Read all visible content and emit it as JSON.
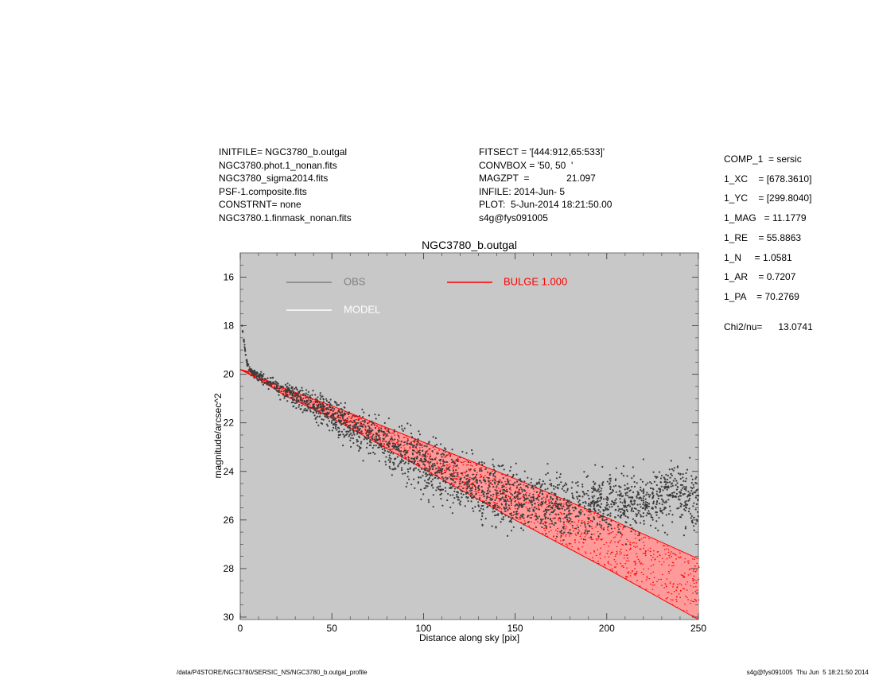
{
  "header": {
    "left": [
      "INITFILE= NGC3780_b.outgal",
      "NGC3780.phot.1_nonan.fits",
      "NGC3780_sigma2014.fits",
      "PSF-1.composite.fits",
      "CONSTRNT= none",
      "NGC3780.1.finmask_nonan.fits"
    ],
    "middle": [
      "FITSECT = '[444:912,65:533]'",
      "CONVBOX = '50, 50  '",
      "MAGZPT  =              21.097",
      "INFILE: 2014-Jun- 5",
      "PLOT:  5-Jun-2014 18:21:50.00",
      "s4g@fys091005"
    ]
  },
  "components": [
    "COMP_1  = sersic",
    "1_XC    = [678.3610]",
    "1_YC    = [299.8040]",
    "1_MAG   = 11.1779",
    "1_RE    = 55.8863",
    "1_N     = 1.0581",
    "1_AR    = 0.7207",
    "1_PA    = 70.2769",
    "Chi2/nu=      13.0741"
  ],
  "footer": {
    "left": "/data/P4STORE/NGC3780/SERSIC_NS/NGC3780_b.outgal_profile",
    "right": "s4g@fys091005  Thu Jun  5 18:21:50 2014"
  },
  "chart_data": {
    "type": "scatter",
    "title": "NGC3780_b.outgal",
    "xlabel": "Distance along sky [pix]",
    "ylabel": "magnitude/arcsec^2",
    "xlim": [
      0,
      250
    ],
    "ylim": [
      30.1,
      15.0
    ],
    "y_inverted": true,
    "xticks": [
      0,
      50,
      100,
      150,
      200,
      250
    ],
    "yticks": [
      16,
      18,
      20,
      22,
      24,
      26,
      28,
      30
    ],
    "background_color": "#c8c8c8",
    "legend": [
      {
        "name": "OBS",
        "color": "#808080"
      },
      {
        "name": "MODEL",
        "color": "#ffffff"
      },
      {
        "name": "BULGE  1.000",
        "color": "#ff0000"
      }
    ],
    "series": [
      {
        "name": "OBS",
        "color": "#3c3c3c",
        "style": "points",
        "x": [
          1,
          2,
          3,
          4,
          5,
          6,
          8,
          10,
          15,
          20,
          25,
          30,
          35,
          40,
          45,
          50,
          55,
          60,
          65,
          70,
          75,
          80,
          85,
          90,
          95,
          100,
          105,
          110,
          115,
          120,
          125,
          130,
          135,
          140,
          145,
          150,
          155,
          160,
          165,
          170,
          175,
          180,
          185,
          190,
          195,
          200,
          205,
          210,
          215,
          220,
          225,
          230,
          235,
          240,
          245,
          250
        ],
        "y": [
          18.0,
          18.6,
          19.2,
          19.6,
          19.8,
          19.9,
          20.0,
          20.1,
          20.3,
          20.5,
          20.7,
          20.9,
          21.1,
          21.3,
          21.5,
          21.7,
          21.9,
          22.1,
          22.3,
          22.5,
          22.7,
          22.9,
          23.1,
          23.3,
          23.5,
          23.7,
          23.9,
          24.1,
          24.3,
          24.5,
          24.6,
          24.7,
          24.8,
          24.9,
          25.0,
          25.1,
          25.2,
          25.2,
          25.3,
          25.3,
          25.4,
          25.4,
          25.4,
          25.4,
          25.4,
          25.4,
          25.3,
          25.3,
          25.2,
          25.2,
          25.1,
          25.0,
          25.0,
          25.0,
          25.0,
          25.0
        ],
        "scatter": [
          0.1,
          0.1,
          0.1,
          0.1,
          0.1,
          0.1,
          0.15,
          0.2,
          0.25,
          0.3,
          0.35,
          0.4,
          0.45,
          0.5,
          0.55,
          0.6,
          0.65,
          0.7,
          0.75,
          0.8,
          0.85,
          0.9,
          0.95,
          1.0,
          1.05,
          1.1,
          1.1,
          1.1,
          1.1,
          1.1,
          1.1,
          1.1,
          1.1,
          1.1,
          1.1,
          1.1,
          1.1,
          1.1,
          1.1,
          1.1,
          1.1,
          1.1,
          1.1,
          1.1,
          1.1,
          1.1,
          1.1,
          1.1,
          1.1,
          1.1,
          1.1,
          1.1,
          1.1,
          1.1,
          1.1,
          1.1
        ]
      },
      {
        "name": "BULGE  1.000",
        "color": "#ff0000",
        "style": "band",
        "x": [
          0,
          5,
          10,
          25,
          50,
          100,
          150,
          200,
          250
        ],
        "y_upper": [
          19.8,
          19.9,
          20.1,
          20.6,
          21.3,
          22.8,
          24.3,
          25.9,
          27.6
        ],
        "y_lower": [
          19.8,
          20.0,
          20.2,
          20.9,
          21.8,
          23.9,
          26.0,
          28.0,
          30.1
        ]
      }
    ]
  }
}
